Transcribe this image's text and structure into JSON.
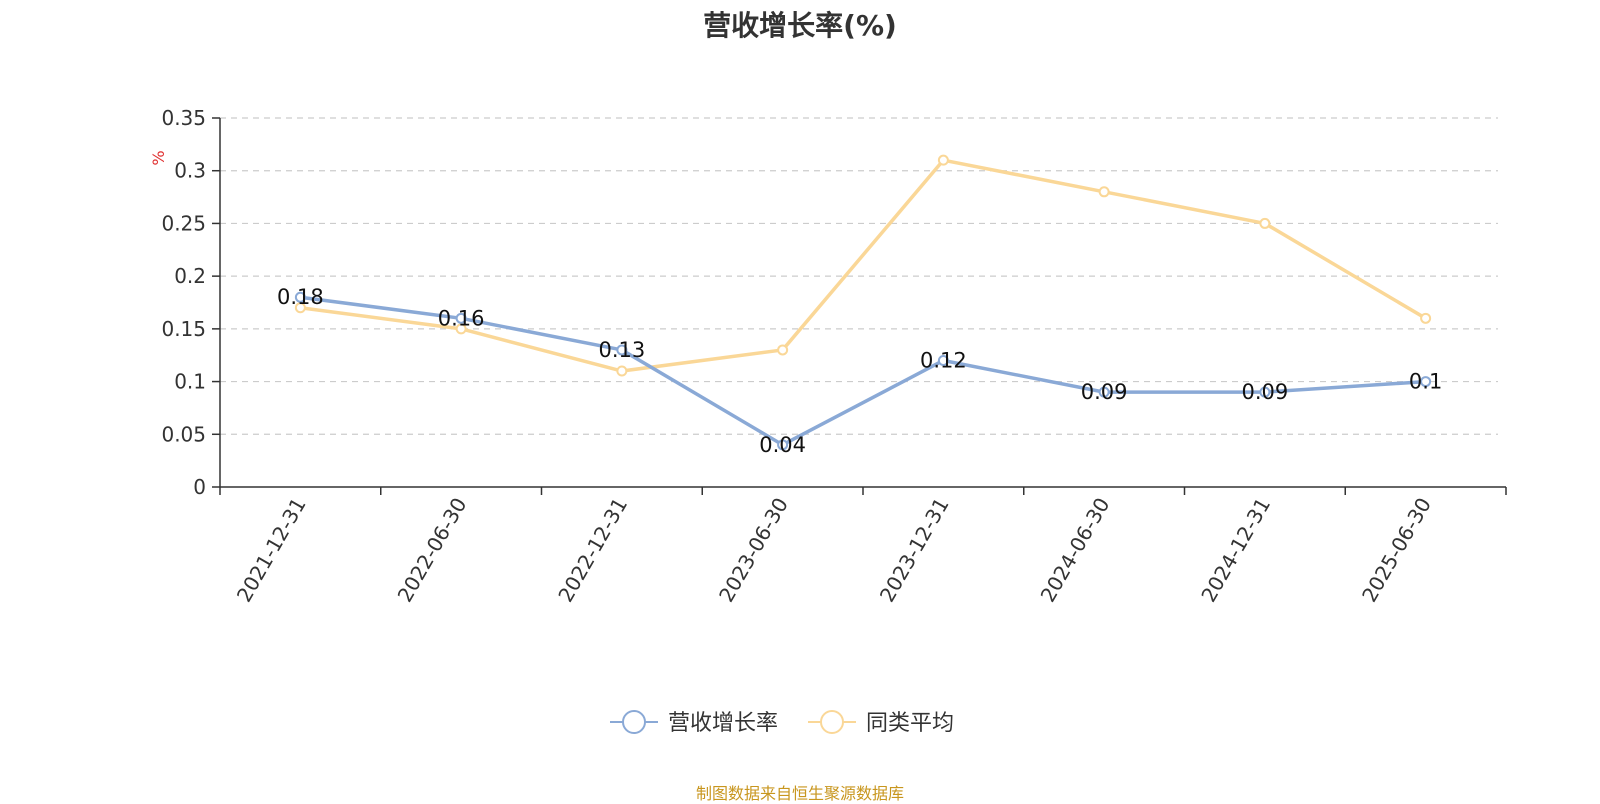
{
  "chart_data": {
    "type": "line",
    "title": "营收增长率(%)",
    "ylabel": "%",
    "xlabel": "",
    "categories": [
      "2021-12-31",
      "2022-06-30",
      "2022-12-31",
      "2023-06-30",
      "2023-12-31",
      "2024-06-30",
      "2024-12-31",
      "2025-06-30"
    ],
    "y_ticks": [
      "0",
      "0.05",
      "0.1",
      "0.15",
      "0.2",
      "0.25",
      "0.3",
      "0.35"
    ],
    "ylim": [
      0,
      0.35
    ],
    "grid": true,
    "legend_position": "bottom-center",
    "series": [
      {
        "name": "营收增长率",
        "color": "#8aa9d6",
        "values": [
          0.18,
          0.16,
          0.13,
          0.04,
          0.12,
          0.09,
          0.09,
          0.1
        ],
        "data_labels": [
          "0.18",
          "0.16",
          "0.13",
          "0.04",
          "0.12",
          "0.09",
          "0.09",
          "0.1"
        ]
      },
      {
        "name": "同类平均",
        "color": "#fad797",
        "values": [
          0.17,
          0.15,
          0.11,
          0.13,
          0.31,
          0.28,
          0.25,
          0.16
        ]
      }
    ]
  },
  "source_note": "制图数据来自恒生聚源数据库",
  "colors": {
    "axis": "#333333",
    "grid": "#cccccc",
    "ylabel": "#e03030",
    "source": "#c8961e"
  }
}
